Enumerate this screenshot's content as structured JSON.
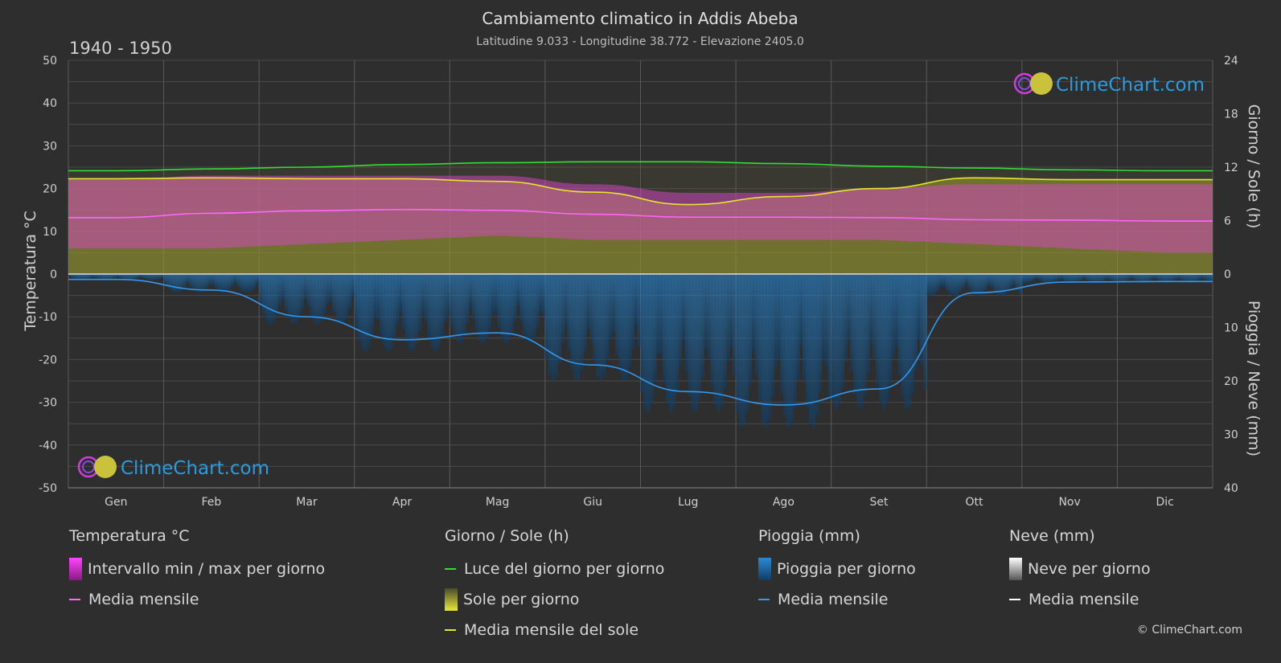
{
  "header": {
    "title": "Cambiamento climatico in Addis Abeba",
    "subtitle": "Latitudine 9.033 - Longitudine 38.772 - Elevazione 2405.0",
    "period": "1940 - 1950"
  },
  "watermark": {
    "text": "ClimeChart.com"
  },
  "copyright": "© ClimeChart.com",
  "colors": {
    "background": "#2e2e2e",
    "temp_range": "#d946c8",
    "temp_mean": "#ff66ff",
    "daylight": "#33dd33",
    "sunshine_fill": "#b5b52a",
    "sunshine_mean": "#e6e62a",
    "rain_fill": "#1f6fae",
    "rain_mean": "#3399ee",
    "snow_mean": "#ffffff",
    "brand_blue": "#2b9be0"
  },
  "chart_data": {
    "type": "area",
    "title": "Cambiamento climatico in Addis Abeba",
    "categories": [
      "Gen",
      "Feb",
      "Mar",
      "Apr",
      "Mag",
      "Giu",
      "Lug",
      "Ago",
      "Set",
      "Ott",
      "Nov",
      "Dic"
    ],
    "axes": {
      "left": {
        "label": "Temperatura °C",
        "ylim": [
          -50,
          50
        ],
        "ticks": [
          50,
          40,
          30,
          20,
          10,
          0,
          -10,
          -20,
          -30,
          -40,
          -50
        ]
      },
      "right_top": {
        "label": "Giorno / Sole (h)",
        "ylim": [
          0,
          24
        ],
        "ticks": [
          24,
          18,
          12,
          6,
          0
        ]
      },
      "right_bottom": {
        "label": "Pioggia / Neve (mm)",
        "ylim": [
          0,
          40
        ],
        "ticks": [
          10,
          20,
          30,
          40
        ]
      }
    },
    "grid": true,
    "series": [
      {
        "name": "Intervallo min / max per giorno",
        "axis": "left",
        "kind": "band",
        "min": [
          6,
          6,
          7,
          8,
          9,
          8,
          8,
          8,
          8,
          7,
          6,
          5
        ],
        "max": [
          22,
          23,
          23,
          23,
          23,
          21,
          19,
          19,
          20,
          21,
          21,
          21
        ]
      },
      {
        "name": "Media mensile",
        "axis": "left",
        "kind": "line",
        "values": [
          13.2,
          14.2,
          14.8,
          15.1,
          14.9,
          14.0,
          13.3,
          13.3,
          13.2,
          12.7,
          12.6,
          12.4
        ]
      },
      {
        "name": "Luce del giorno per giorno",
        "axis": "right_top",
        "kind": "line",
        "values": [
          11.6,
          11.8,
          12.0,
          12.3,
          12.5,
          12.6,
          12.6,
          12.4,
          12.1,
          11.9,
          11.7,
          11.6
        ]
      },
      {
        "name": "Sole per giorno",
        "axis": "right_top",
        "kind": "area",
        "values": [
          10.7,
          10.8,
          10.7,
          10.7,
          10.4,
          9.2,
          7.8,
          8.7,
          9.6,
          10.8,
          10.6,
          10.6
        ]
      },
      {
        "name": "Media mensile del sole",
        "axis": "right_top",
        "kind": "line",
        "values": [
          10.7,
          10.8,
          10.7,
          10.7,
          10.4,
          9.2,
          7.8,
          8.7,
          9.6,
          10.8,
          10.6,
          10.6
        ]
      },
      {
        "name": "Pioggia per giorno",
        "axis": "right_bottom",
        "kind": "bars",
        "values": [
          1.0,
          3.0,
          8.0,
          12.3,
          11.0,
          17.0,
          22.0,
          24.5,
          21.5,
          3.5,
          1.5,
          1.4
        ]
      },
      {
        "name": "Media mensile",
        "axis": "right_bottom",
        "kind": "line",
        "values": [
          1.0,
          3.0,
          8.0,
          12.3,
          11.0,
          17.0,
          22.0,
          24.5,
          21.5,
          3.5,
          1.5,
          1.4
        ]
      },
      {
        "name": "Neve per giorno",
        "axis": "right_bottom",
        "kind": "bars",
        "values": [
          0,
          0,
          0,
          0,
          0,
          0,
          0,
          0,
          0,
          0,
          0,
          0
        ]
      },
      {
        "name": "Media mensile",
        "axis": "right_bottom",
        "kind": "line",
        "values": [
          0,
          0,
          0,
          0,
          0,
          0,
          0,
          0,
          0,
          0,
          0,
          0
        ]
      }
    ]
  },
  "legend": {
    "temperature": {
      "title": "Temperatura °C",
      "range_label": "Intervallo min / max per giorno",
      "mean_label": "Media mensile"
    },
    "sun": {
      "title": "Giorno / Sole (h)",
      "daylight_label": "Luce del giorno per giorno",
      "sunshine_label": "Sole per giorno",
      "mean_label": "Media mensile del sole"
    },
    "rain": {
      "title": "Pioggia (mm)",
      "rain_label": "Pioggia per giorno",
      "mean_label": "Media mensile"
    },
    "snow": {
      "title": "Neve (mm)",
      "snow_label": "Neve per giorno",
      "mean_label": "Media mensile"
    }
  }
}
